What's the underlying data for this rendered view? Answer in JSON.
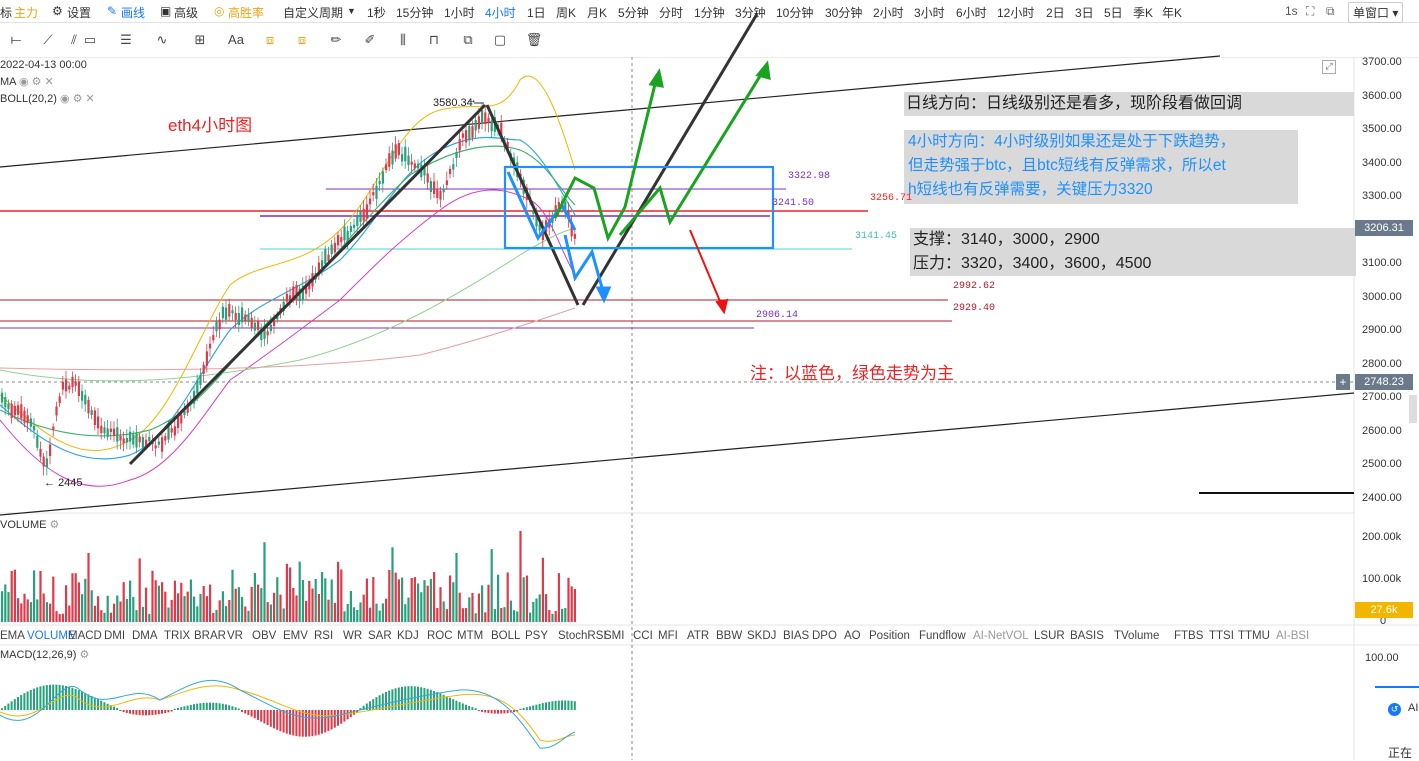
{
  "topbar": {
    "items": [
      "标",
      "主力",
      "设置",
      "画线",
      "高级",
      "高胜率",
      "自定义周期",
      "1秒",
      "15分钟",
      "1小时",
      "4小时",
      "1日",
      "周K",
      "月K",
      "5分钟",
      "分时",
      "1分钟",
      "3分钟",
      "10分钟",
      "30分钟",
      "2小时",
      "3小时",
      "6小时",
      "12小时",
      "2日",
      "3日",
      "5日",
      "季K",
      "年K"
    ],
    "active": "4小时",
    "right_interval": "1s",
    "window_mode": "单窗口"
  },
  "chart_header": {
    "date": "2022-04-13 00:00",
    "ma_label": "MA",
    "boll_label": "BOLL(20,2)"
  },
  "annotations": {
    "chart_title": "eth4小时图",
    "daily_direction": "日线方向：日线级别还是看多，现阶段看做回调",
    "h4_direction_1": "4小时方向：4小时级别如果还是处于下跌趋势，",
    "h4_direction_2": "但走势强于btc，且btc短线有反弹需求，所以et",
    "h4_direction_3": "h短线也有反弹需要，关键压力3320",
    "support": "支撑：3140，3000，2900",
    "resistance": "压力：3320，3400，3600，4500",
    "note": "注：以蓝色，绿色走势为主",
    "high_label": "3580.34",
    "low_label": "2445"
  },
  "price_levels": [
    "3322.98",
    "3256.71",
    "3241.50",
    "3141.45",
    "2992.62",
    "2929.40",
    "2906.14"
  ],
  "price_axis": {
    "ticks": [
      "3700.00",
      "3600.00",
      "3500.00",
      "3400.00",
      "3300.00",
      "3200.00",
      "3100.00",
      "3000.00",
      "2900.00",
      "2800.00",
      "2700.00",
      "2600.00",
      "2500.00",
      "2400.00"
    ],
    "current_price": "3206.31",
    "cursor_price": "2748.23",
    "cursor_plus": "+"
  },
  "volume": {
    "label": "VOLUME",
    "axis": [
      "200.00k",
      "100.00k",
      "0"
    ],
    "current": "27.6k"
  },
  "indicator_tabs": [
    "EMA",
    "VOLUME",
    "MACD",
    "DMI",
    "DMA",
    "TRIX",
    "BRAR",
    "VR",
    "OBV",
    "EMV",
    "RSI",
    "WR",
    "SAR",
    "KDJ",
    "ROC",
    "MTM",
    "BOLL",
    "PSY",
    "StochRSI",
    "SMI",
    "CCI",
    "MFI",
    "ATR",
    "BBW",
    "SKDJ",
    "BIAS",
    "DPO",
    "AO",
    "Position",
    "Fundflow",
    "AI-NetVOL",
    "LSUR",
    "BASIS",
    "TVolume",
    "FTBS",
    "TTSI",
    "TTMU",
    "AI-BSI"
  ],
  "active_indicator": "VOLUME",
  "macd": {
    "label": "MACD(12,26,9)",
    "axis_top": "100.00",
    "ai_label": "AI",
    "status": "正在"
  },
  "colors": {
    "up": "#26a17b",
    "down": "#e0394a",
    "blue_arrow": "#1e90ff",
    "green_arrow": "#1aa320",
    "red_arrow": "#ee1111",
    "accent": "#1677ff"
  }
}
